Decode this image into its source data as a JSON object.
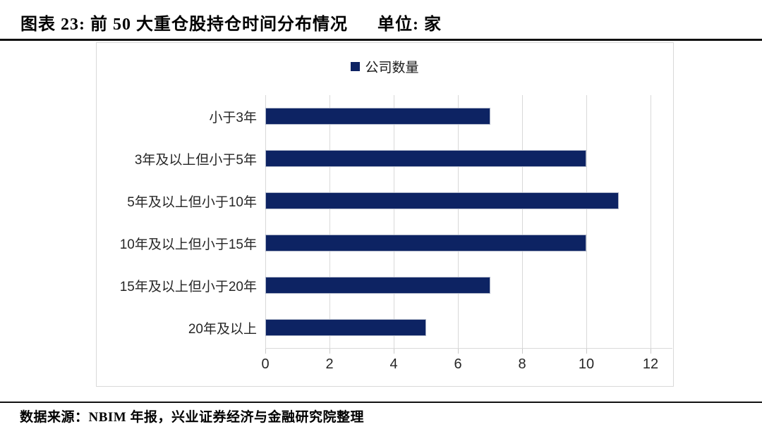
{
  "header": {
    "title": "图表 23: 前 50 大重仓股持仓时间分布情况",
    "unit": "单位: 家"
  },
  "legend": {
    "label": "公司数量"
  },
  "chart_data": {
    "type": "bar",
    "orientation": "horizontal",
    "title": "前 50 大重仓股持仓时间分布情况",
    "series_name": "公司数量",
    "categories": [
      "小于3年",
      "3年及以上但小于5年",
      "5年及以上但小于10年",
      "10年及以上但小于15年",
      "15年及以上但小于20年",
      "20年及以上"
    ],
    "values": [
      7,
      10,
      11,
      10,
      7,
      5
    ],
    "xlabel": "",
    "ylabel": "",
    "xlim": [
      0,
      12
    ],
    "x_ticks": [
      0,
      2,
      4,
      6,
      8,
      10,
      12
    ],
    "grid": true,
    "legend_position": "top-center",
    "bar_color": "#0d2363",
    "gridline_color": "#d9d9d9"
  },
  "footer": {
    "source": "数据来源：NBIM 年报，兴业证券经济与金融研究院整理"
  }
}
